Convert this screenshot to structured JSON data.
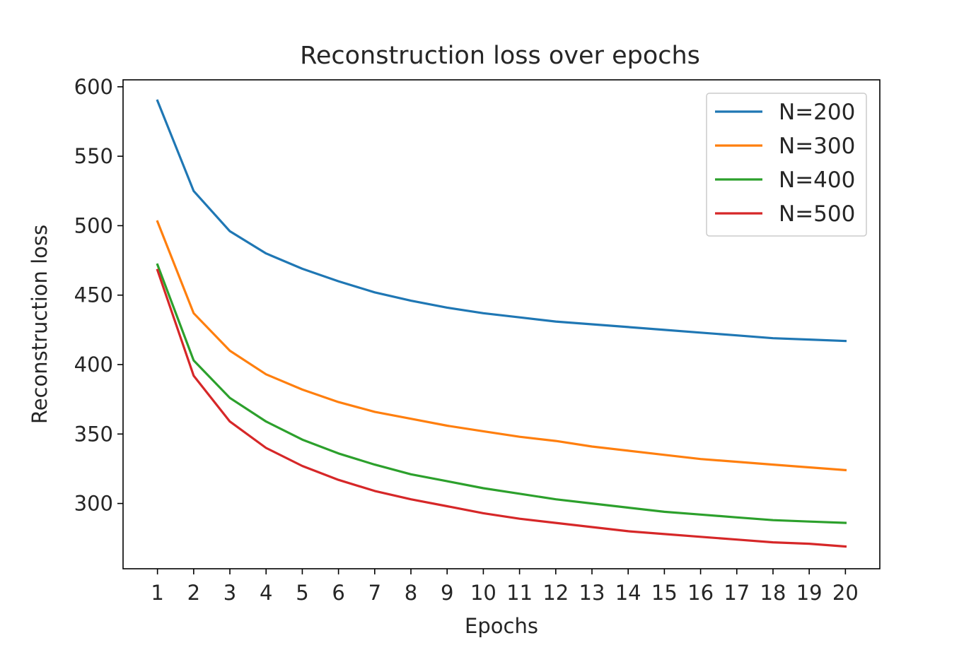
{
  "chart_data": {
    "type": "line",
    "title": "Reconstruction loss over epochs",
    "xlabel": "Epochs",
    "ylabel": "Reconstruction loss",
    "x": [
      1,
      2,
      3,
      4,
      5,
      6,
      7,
      8,
      9,
      10,
      11,
      12,
      13,
      14,
      15,
      16,
      17,
      18,
      19,
      20
    ],
    "xticks": [
      "1",
      "2",
      "3",
      "4",
      "5",
      "6",
      "7",
      "8",
      "9",
      "10",
      "11",
      "12",
      "13",
      "14",
      "15",
      "16",
      "17",
      "18",
      "19",
      "20"
    ],
    "yticks": [
      300,
      350,
      400,
      450,
      500,
      550,
      600
    ],
    "xlim": [
      0.05,
      20.95
    ],
    "ylim": [
      253,
      605
    ],
    "grid": false,
    "legend_position": "top-right",
    "series": [
      {
        "name": "N=200",
        "color": "#1f77b4",
        "values": [
          590,
          525,
          496,
          480,
          469,
          460,
          452,
          446,
          441,
          437,
          434,
          431,
          429,
          427,
          425,
          423,
          421,
          419,
          418,
          417
        ]
      },
      {
        "name": "N=300",
        "color": "#ff7f0e",
        "values": [
          503,
          437,
          410,
          393,
          382,
          373,
          366,
          361,
          356,
          352,
          348,
          345,
          341,
          338,
          335,
          332,
          330,
          328,
          326,
          324
        ]
      },
      {
        "name": "N=400",
        "color": "#2ca02c",
        "values": [
          472,
          403,
          376,
          359,
          346,
          336,
          328,
          321,
          316,
          311,
          307,
          303,
          300,
          297,
          294,
          292,
          290,
          288,
          287,
          286
        ]
      },
      {
        "name": "N=500",
        "color": "#d62728",
        "values": [
          468,
          392,
          359,
          340,
          327,
          317,
          309,
          303,
          298,
          293,
          289,
          286,
          283,
          280,
          278,
          276,
          274,
          272,
          271,
          269
        ]
      }
    ]
  }
}
